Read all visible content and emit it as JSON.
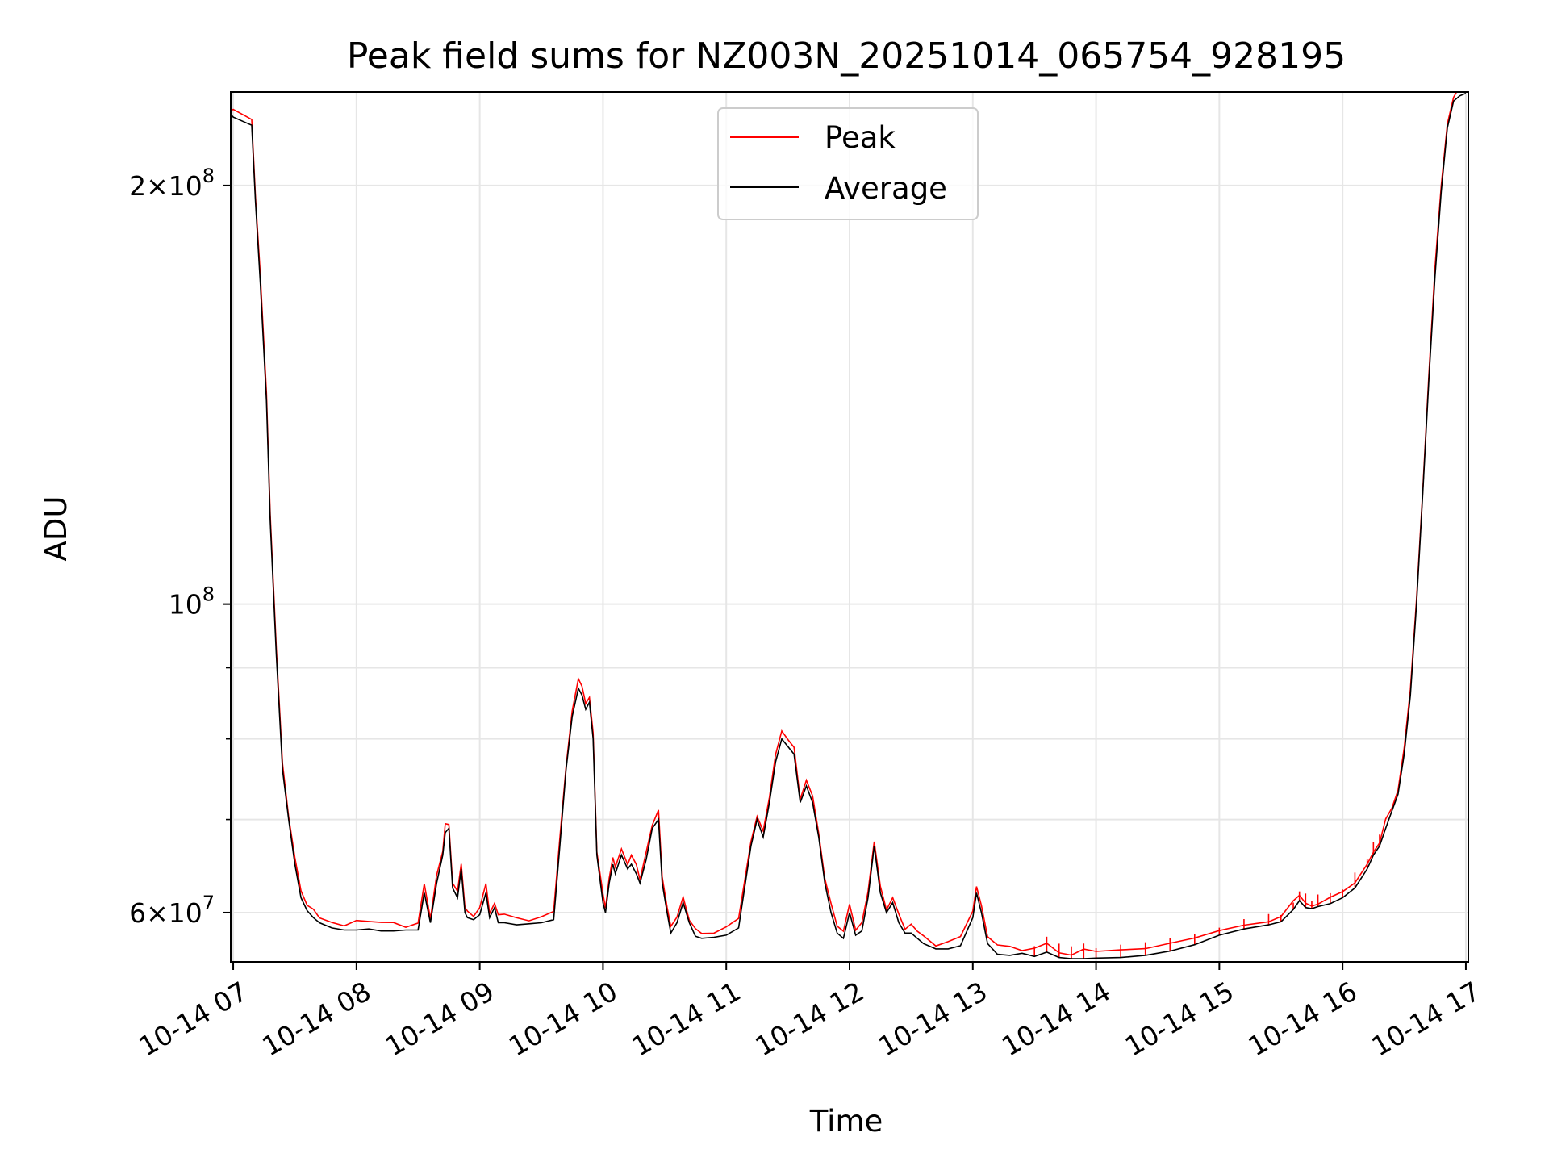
{
  "chart_data": {
    "type": "line",
    "title": "Peak field sums for NZ003N_20251014_065754_928195",
    "xlabel": "Time",
    "ylabel": "ADU",
    "yscale": "log",
    "ylim": [
      55300000,
      233500000
    ],
    "xlim": [
      6.98,
      17.02
    ],
    "x_tick_values": [
      7,
      8,
      9,
      10,
      11,
      12,
      13,
      14,
      15,
      16,
      17
    ],
    "x_tick_labels": [
      "10-14 07",
      "10-14 08",
      "10-14 09",
      "10-14 10",
      "10-14 11",
      "10-14 12",
      "10-14 13",
      "10-14 14",
      "10-14 15",
      "10-14 16",
      "10-14 17"
    ],
    "y_major_ticks": [
      {
        "value": 60000000,
        "mantissa": "6",
        "exponent": "7"
      },
      {
        "value": 100000000,
        "mantissa": "",
        "exponent": "8"
      },
      {
        "value": 200000000,
        "mantissa": "2",
        "exponent": "8"
      }
    ],
    "y_minor_ticks": [
      70000000,
      80000000,
      90000000
    ],
    "grid": true,
    "legend_location": "upper center",
    "series": [
      {
        "name": "Peak",
        "color": "#ff0000"
      },
      {
        "name": "Average",
        "color": "#000000"
      }
    ],
    "x": [
      6.98,
      7.0,
      7.1,
      7.15,
      7.18,
      7.22,
      7.27,
      7.3,
      7.35,
      7.4,
      7.45,
      7.5,
      7.55,
      7.6,
      7.65,
      7.7,
      7.8,
      7.9,
      8.0,
      8.1,
      8.2,
      8.3,
      8.4,
      8.5,
      8.55,
      8.6,
      8.65,
      8.7,
      8.72,
      8.75,
      8.78,
      8.82,
      8.85,
      8.88,
      8.9,
      8.95,
      9.0,
      9.05,
      9.08,
      9.12,
      9.15,
      9.2,
      9.3,
      9.4,
      9.5,
      9.6,
      9.65,
      9.7,
      9.75,
      9.8,
      9.83,
      9.86,
      9.89,
      9.92,
      9.95,
      10.0,
      10.02,
      10.05,
      10.08,
      10.1,
      10.15,
      10.2,
      10.23,
      10.27,
      10.3,
      10.35,
      10.4,
      10.45,
      10.48,
      10.52,
      10.55,
      10.6,
      10.65,
      10.7,
      10.75,
      10.8,
      10.9,
      11.0,
      11.1,
      11.2,
      11.25,
      11.3,
      11.35,
      11.4,
      11.45,
      11.5,
      11.55,
      11.6,
      11.65,
      11.7,
      11.75,
      11.8,
      11.85,
      11.9,
      11.95,
      12.0,
      12.05,
      12.1,
      12.15,
      12.2,
      12.25,
      12.3,
      12.35,
      12.4,
      12.45,
      12.5,
      12.55,
      12.6,
      12.7,
      12.8,
      12.9,
      13.0,
      13.03,
      13.07,
      13.12,
      13.2,
      13.3,
      13.4,
      13.5,
      13.6,
      13.7,
      13.8,
      13.9,
      14.0,
      14.2,
      14.4,
      14.6,
      14.8,
      15.0,
      15.2,
      15.4,
      15.5,
      15.6,
      15.65,
      15.7,
      15.75,
      15.8,
      15.9,
      16.0,
      16.1,
      16.2,
      16.25,
      16.3,
      16.35,
      16.4,
      16.45,
      16.5,
      16.55,
      16.6,
      16.65,
      16.7,
      16.75,
      16.8,
      16.85,
      16.9,
      16.95,
      17.0
    ],
    "values": [
      225000000,
      224000000,
      222000000,
      221000000,
      195000000,
      170000000,
      140000000,
      115000000,
      92000000,
      76000000,
      70000000,
      65000000,
      61500000,
      60200000,
      59500000,
      59000000,
      58500000,
      58300000,
      58300000,
      58400000,
      58200000,
      58200000,
      58300000,
      58300000,
      62000000,
      59000000,
      63000000,
      66000000,
      68500000,
      69000000,
      62500000,
      61500000,
      64500000,
      60000000,
      59500000,
      59300000,
      59800000,
      62000000,
      59500000,
      60500000,
      59000000,
      59000000,
      58800000,
      58900000,
      59000000,
      59300000,
      67000000,
      76000000,
      83000000,
      87000000,
      86000000,
      84000000,
      85000000,
      80000000,
      66000000,
      61000000,
      60000000,
      63000000,
      65000000,
      64000000,
      66000000,
      64500000,
      65000000,
      64000000,
      63000000,
      65500000,
      69000000,
      70000000,
      63000000,
      60000000,
      58000000,
      59000000,
      61000000,
      59000000,
      57700000,
      57500000,
      57600000,
      57800000,
      58500000,
      67000000,
      70000000,
      68000000,
      72000000,
      77000000,
      80000000,
      79000000,
      78000000,
      72000000,
      74000000,
      72000000,
      68000000,
      63000000,
      60000000,
      58000000,
      57500000,
      60000000,
      57800000,
      58200000,
      61500000,
      67000000,
      62000000,
      60000000,
      61000000,
      59000000,
      58000000,
      58000000,
      57500000,
      57000000,
      56500000,
      56500000,
      56800000,
      59500000,
      62000000,
      60000000,
      57000000,
      56000000,
      55900000,
      56100000,
      55800000,
      56200000,
      55700000,
      55600000,
      55600000,
      55650000,
      55700000,
      55900000,
      56300000,
      56900000,
      57800000,
      58400000,
      58800000,
      59100000,
      60300000,
      61200000,
      60500000,
      60400000,
      60600000,
      60900000,
      61500000,
      62500000,
      64500000,
      66000000,
      67000000,
      69000000,
      71000000,
      73000000,
      78000000,
      86000000,
      100000000,
      120000000,
      145000000,
      172000000,
      198000000,
      220000000,
      230000000,
      232000000,
      233000000
    ]
  }
}
